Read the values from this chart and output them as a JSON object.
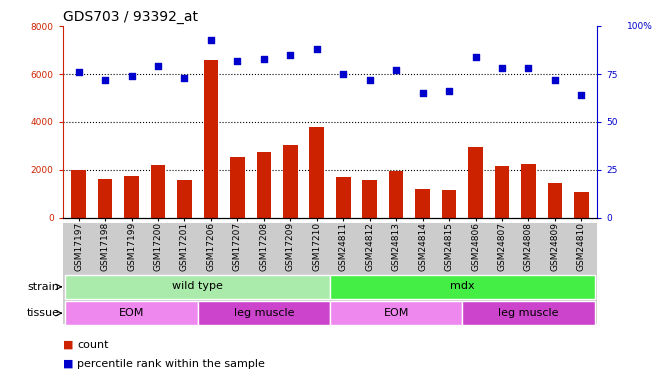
{
  "title": "GDS703 / 93392_at",
  "samples": [
    "GSM17197",
    "GSM17198",
    "GSM17199",
    "GSM17200",
    "GSM17201",
    "GSM17206",
    "GSM17207",
    "GSM17208",
    "GSM17209",
    "GSM17210",
    "GSM24811",
    "GSM24812",
    "GSM24813",
    "GSM24814",
    "GSM24815",
    "GSM24806",
    "GSM24807",
    "GSM24808",
    "GSM24809",
    "GSM24810"
  ],
  "counts": [
    2000,
    1600,
    1750,
    2200,
    1550,
    6600,
    2550,
    2750,
    3050,
    3800,
    1700,
    1550,
    1950,
    1200,
    1150,
    2950,
    2150,
    2250,
    1450,
    1050
  ],
  "percentiles": [
    76,
    72,
    74,
    79,
    73,
    93,
    82,
    83,
    85,
    88,
    75,
    72,
    77,
    65,
    66,
    84,
    78,
    78,
    72,
    64
  ],
  "ylim_left": [
    0,
    8000
  ],
  "ylim_right": [
    0,
    100
  ],
  "yticks_left": [
    0,
    2000,
    4000,
    6000,
    8000
  ],
  "yticks_right": [
    0,
    25,
    50,
    75,
    100
  ],
  "strain_groups": [
    {
      "label": "wild type",
      "start": 0,
      "end": 10,
      "color": "#aaeaaa"
    },
    {
      "label": "mdx",
      "start": 10,
      "end": 20,
      "color": "#44ee44"
    }
  ],
  "tissue_groups": [
    {
      "label": "EOM",
      "start": 0,
      "end": 5,
      "color": "#ee88ee"
    },
    {
      "label": "leg muscle",
      "start": 5,
      "end": 10,
      "color": "#cc44cc"
    },
    {
      "label": "EOM",
      "start": 10,
      "end": 15,
      "color": "#ee88ee"
    },
    {
      "label": "leg muscle",
      "start": 15,
      "end": 20,
      "color": "#cc44cc"
    }
  ],
  "bar_color": "#cc2200",
  "dot_color": "#0000cc",
  "background_color": "#ffffff",
  "tick_bg_color": "#cccccc",
  "title_fontsize": 10,
  "tick_fontsize": 6.5,
  "label_fontsize": 8,
  "annotation_fontsize": 8,
  "strain_label": "strain",
  "tissue_label": "tissue"
}
